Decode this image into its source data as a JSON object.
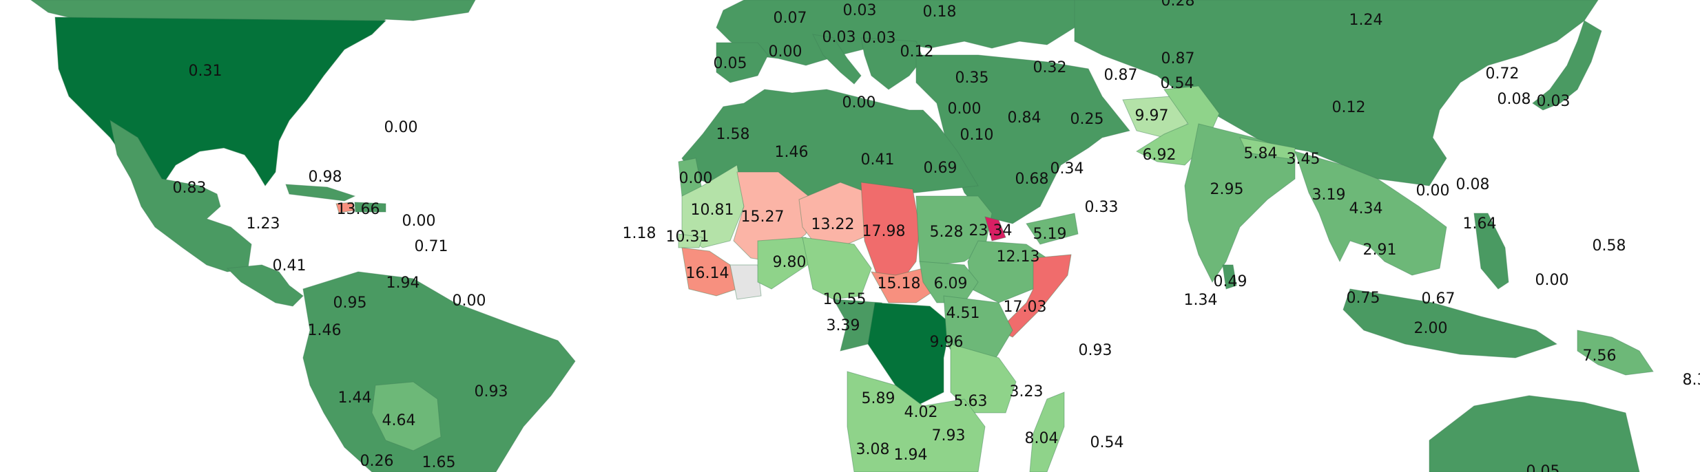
{
  "colors": {
    "water": "#ffffff",
    "dark_green": "#04733a",
    "mid_green": "#4a9a62",
    "green": "#6db878",
    "light_green": "#8fd38a",
    "pale_green": "#b4e2a8",
    "salmon_light": "#fbb4a6",
    "salmon": "#f7907f",
    "red": "#f06c6c",
    "magenta": "#d91f63",
    "no_data": "#e4e4e4"
  },
  "labels": [
    {
      "id": "usa",
      "text": "0.31"
    },
    {
      "id": "atlantic",
      "text": "0.00"
    },
    {
      "id": "bahamas",
      "text": "0.98"
    },
    {
      "id": "mexico",
      "text": "0.83"
    },
    {
      "id": "guatemala",
      "text": "1.23"
    },
    {
      "id": "haiti",
      "text": "13.66"
    },
    {
      "id": "pr",
      "text": "0.00"
    },
    {
      "id": "caribbean",
      "text": "0.71"
    },
    {
      "id": "panama",
      "text": "0.41"
    },
    {
      "id": "venezuela",
      "text": "1.94"
    },
    {
      "id": "guyana",
      "text": "0.00"
    },
    {
      "id": "colombia",
      "text": "0.95"
    },
    {
      "id": "ecuador",
      "text": "1.46"
    },
    {
      "id": "peru",
      "text": "1.44"
    },
    {
      "id": "brazil",
      "text": "0.93"
    },
    {
      "id": "bolivia",
      "text": "4.64"
    },
    {
      "id": "chile",
      "text": "0.26"
    },
    {
      "id": "paraguay",
      "text": "1.65"
    },
    {
      "id": "cape_verde",
      "text": "1.18"
    },
    {
      "id": "germany",
      "text": "0.07"
    },
    {
      "id": "poland",
      "text": "0.03"
    },
    {
      "id": "ukraine",
      "text": "0.18"
    },
    {
      "id": "russia_w",
      "text": "0.28"
    },
    {
      "id": "kazakh",
      "text": "1.24"
    },
    {
      "id": "france",
      "text": "0.00"
    },
    {
      "id": "spain",
      "text": "0.05"
    },
    {
      "id": "italy",
      "text": "0.03"
    },
    {
      "id": "balkans",
      "text": "0.03"
    },
    {
      "id": "greece",
      "text": "0.12"
    },
    {
      "id": "turkey",
      "text": "0.35"
    },
    {
      "id": "caucasus",
      "text": "0.32"
    },
    {
      "id": "turkmen",
      "text": "0.87"
    },
    {
      "id": "uzbek",
      "text": "0.87"
    },
    {
      "id": "tajik",
      "text": "0.54"
    },
    {
      "id": "mongolia_cn",
      "text": "0.72"
    },
    {
      "id": "korea",
      "text": "0.08"
    },
    {
      "id": "japan",
      "text": "0.03"
    },
    {
      "id": "china",
      "text": "0.12"
    },
    {
      "id": "malta",
      "text": "0.00"
    },
    {
      "id": "cyprus",
      "text": "0.00"
    },
    {
      "id": "morocco",
      "text": "1.58"
    },
    {
      "id": "algeria",
      "text": "1.46"
    },
    {
      "id": "libya",
      "text": "0.41"
    },
    {
      "id": "egypt",
      "text": "0.69"
    },
    {
      "id": "israel",
      "text": "0.10"
    },
    {
      "id": "iraq",
      "text": "0.84"
    },
    {
      "id": "iran",
      "text": "0.25"
    },
    {
      "id": "afghanistan",
      "text": "9.97"
    },
    {
      "id": "pakistan",
      "text": "6.92"
    },
    {
      "id": "saudi",
      "text": "0.68"
    },
    {
      "id": "uae",
      "text": "0.34"
    },
    {
      "id": "oman",
      "text": "0.33"
    },
    {
      "id": "nepal",
      "text": "5.84"
    },
    {
      "id": "bhutan",
      "text": "3.45"
    },
    {
      "id": "india",
      "text": "2.95"
    },
    {
      "id": "myanmar",
      "text": "3.19"
    },
    {
      "id": "thailand",
      "text": "4.34"
    },
    {
      "id": "laos",
      "text": "0.00"
    },
    {
      "id": "vietnam",
      "text": "0.08"
    },
    {
      "id": "philippines",
      "text": "1.64"
    },
    {
      "id": "cambodia",
      "text": "2.91"
    },
    {
      "id": "pacific",
      "text": "0.58"
    },
    {
      "id": "western_sahara",
      "text": "0.00"
    },
    {
      "id": "mauritania",
      "text": "10.81"
    },
    {
      "id": "mali",
      "text": "15.27"
    },
    {
      "id": "niger",
      "text": "13.22"
    },
    {
      "id": "chad",
      "text": "17.98"
    },
    {
      "id": "sudan",
      "text": "5.28"
    },
    {
      "id": "eritrea",
      "text": "23.34"
    },
    {
      "id": "djibouti",
      "text": "5.19"
    },
    {
      "id": "senegal",
      "text": "10.31"
    },
    {
      "id": "ethiopia",
      "text": "12.13"
    },
    {
      "id": "guinea",
      "text": "16.14"
    },
    {
      "id": "burkina",
      "text": "9.80"
    },
    {
      "id": "nigeria",
      "text": "10.55"
    },
    {
      "id": "car",
      "text": "15.18"
    },
    {
      "id": "south_sudan",
      "text": "6.09"
    },
    {
      "id": "somalia",
      "text": "17.03"
    },
    {
      "id": "uganda",
      "text": "4.51"
    },
    {
      "id": "gabon",
      "text": "3.39"
    },
    {
      "id": "drc",
      "text": "9.96"
    },
    {
      "id": "srilanka",
      "text": "0.49"
    },
    {
      "id": "maldives",
      "text": "1.34"
    },
    {
      "id": "malaysia",
      "text": "0.75"
    },
    {
      "id": "borneo",
      "text": "0.67"
    },
    {
      "id": "indian_ocean",
      "text": "0.00"
    },
    {
      "id": "indonesia",
      "text": "2.00"
    },
    {
      "id": "seychelles",
      "text": "0.93"
    },
    {
      "id": "png",
      "text": "7.56"
    },
    {
      "id": "solomon",
      "text": "8.3"
    },
    {
      "id": "angola",
      "text": "5.89"
    },
    {
      "id": "zambia",
      "text": "4.02"
    },
    {
      "id": "malawi",
      "text": "5.63"
    },
    {
      "id": "comoros",
      "text": "3.23"
    },
    {
      "id": "mozambique",
      "text": "7.93"
    },
    {
      "id": "madagascar",
      "text": "8.04"
    },
    {
      "id": "mauritius",
      "text": "0.54"
    },
    {
      "id": "namibia",
      "text": "3.08"
    },
    {
      "id": "botswana",
      "text": "1.94"
    },
    {
      "id": "australia",
      "text": "0.05"
    }
  ]
}
